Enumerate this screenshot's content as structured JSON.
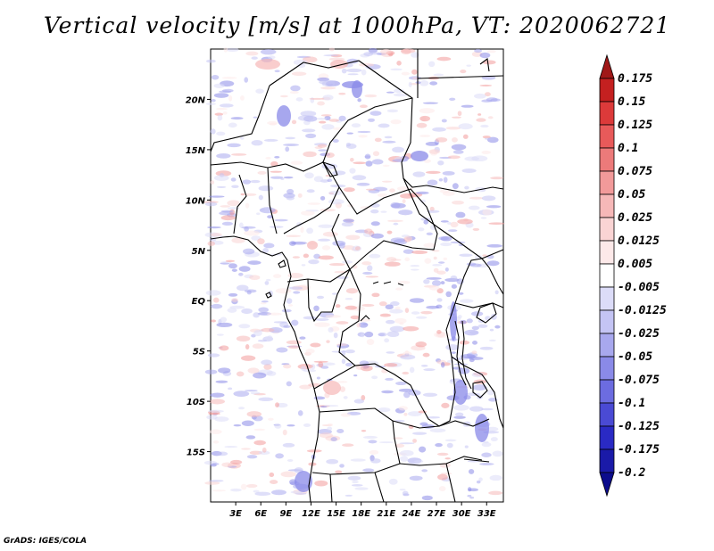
{
  "title": "Vertical velocity [m/s] at 1000hPa, VT: 2020062721",
  "credit": "GrADS: IGES/COLA",
  "map": {
    "lon_range": [
      0,
      35
    ],
    "lat_range": [
      -20,
      25
    ],
    "lat_ticks": [
      "20N",
      "15N",
      "10N",
      "5N",
      "EQ",
      "5S",
      "10S",
      "15S"
    ],
    "lon_ticks": [
      "3E",
      "6E",
      "9E",
      "12E",
      "15E",
      "18E",
      "21E",
      "24E",
      "27E",
      "30E",
      "33E"
    ]
  },
  "colorbar": {
    "labels": [
      "0.175",
      "0.15",
      "0.125",
      "0.1",
      "0.075",
      "0.05",
      "0.025",
      "0.0125",
      "0.005",
      "-0.005",
      "-0.0125",
      "-0.025",
      "-0.05",
      "-0.075",
      "-0.1",
      "-0.125",
      "-0.175",
      "-0.2"
    ],
    "colors": [
      "#a01818",
      "#c42020",
      "#dc3a3a",
      "#e85a5a",
      "#ec7a7a",
      "#f29a9a",
      "#f6b8b8",
      "#fad4d4",
      "#fde9e9",
      "#ffffff",
      "#dcdcf8",
      "#c4c4f4",
      "#a8a8ee",
      "#8a8ae8",
      "#6c6ce0",
      "#4a4ad4",
      "#2a2ac4",
      "#1a1aa8",
      "#0c0c8c"
    ]
  }
}
